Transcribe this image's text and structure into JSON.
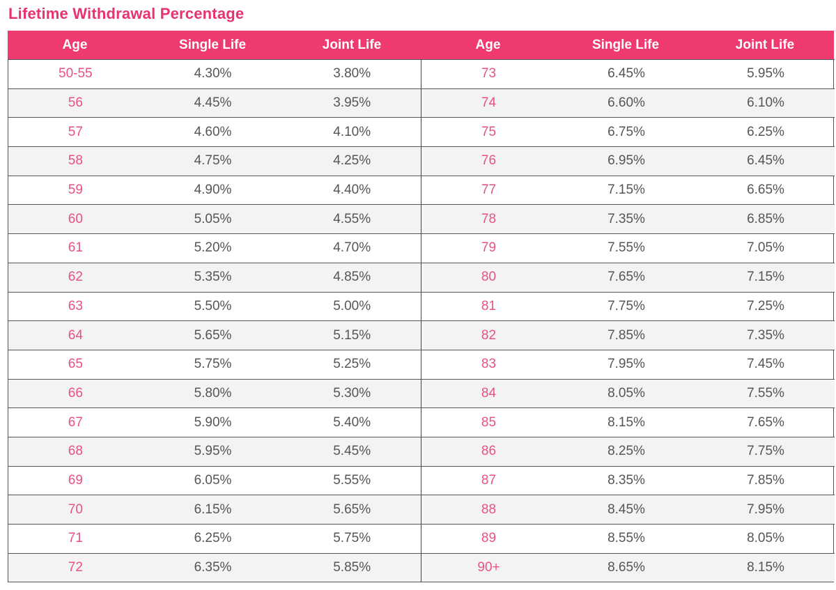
{
  "title": "Lifetime Withdrawal Percentage",
  "headers": [
    "Age",
    "Single Life",
    "Joint Life",
    "Age",
    "Single Life",
    "Joint Life"
  ],
  "colors": {
    "accent": "#ee3a6f",
    "title": "#e8336e",
    "age_text": "#e8527f",
    "stripe": "#f3f3f4"
  },
  "left_rows": [
    {
      "age": "50-55",
      "single": "4.30%",
      "joint": "3.80%"
    },
    {
      "age": "56",
      "single": "4.45%",
      "joint": "3.95%"
    },
    {
      "age": "57",
      "single": "4.60%",
      "joint": "4.10%"
    },
    {
      "age": "58",
      "single": "4.75%",
      "joint": "4.25%"
    },
    {
      "age": "59",
      "single": "4.90%",
      "joint": "4.40%"
    },
    {
      "age": "60",
      "single": "5.05%",
      "joint": "4.55%"
    },
    {
      "age": "61",
      "single": "5.20%",
      "joint": "4.70%"
    },
    {
      "age": "62",
      "single": "5.35%",
      "joint": "4.85%"
    },
    {
      "age": "63",
      "single": "5.50%",
      "joint": "5.00%"
    },
    {
      "age": "64",
      "single": "5.65%",
      "joint": "5.15%"
    },
    {
      "age": "65",
      "single": "5.75%",
      "joint": "5.25%"
    },
    {
      "age": "66",
      "single": "5.80%",
      "joint": "5.30%"
    },
    {
      "age": "67",
      "single": "5.90%",
      "joint": "5.40%"
    },
    {
      "age": "68",
      "single": "5.95%",
      "joint": "5.45%"
    },
    {
      "age": "69",
      "single": "6.05%",
      "joint": "5.55%"
    },
    {
      "age": "70",
      "single": "6.15%",
      "joint": "5.65%"
    },
    {
      "age": "71",
      "single": "6.25%",
      "joint": "5.75%"
    },
    {
      "age": "72",
      "single": "6.35%",
      "joint": "5.85%"
    }
  ],
  "right_rows": [
    {
      "age": "73",
      "single": "6.45%",
      "joint": "5.95%"
    },
    {
      "age": "74",
      "single": "6.60%",
      "joint": "6.10%"
    },
    {
      "age": "75",
      "single": "6.75%",
      "joint": "6.25%"
    },
    {
      "age": "76",
      "single": "6.95%",
      "joint": "6.45%"
    },
    {
      "age": "77",
      "single": "7.15%",
      "joint": "6.65%"
    },
    {
      "age": "78",
      "single": "7.35%",
      "joint": "6.85%"
    },
    {
      "age": "79",
      "single": "7.55%",
      "joint": "7.05%"
    },
    {
      "age": "80",
      "single": "7.65%",
      "joint": "7.15%"
    },
    {
      "age": "81",
      "single": "7.75%",
      "joint": "7.25%"
    },
    {
      "age": "82",
      "single": "7.85%",
      "joint": "7.35%"
    },
    {
      "age": "83",
      "single": "7.95%",
      "joint": "7.45%"
    },
    {
      "age": "84",
      "single": "8.05%",
      "joint": "7.55%"
    },
    {
      "age": "85",
      "single": "8.15%",
      "joint": "7.65%"
    },
    {
      "age": "86",
      "single": "8.25%",
      "joint": "7.75%"
    },
    {
      "age": "87",
      "single": "8.35%",
      "joint": "7.85%"
    },
    {
      "age": "88",
      "single": "8.45%",
      "joint": "7.95%"
    },
    {
      "age": "89",
      "single": "8.55%",
      "joint": "8.05%"
    },
    {
      "age": "90+",
      "single": "8.65%",
      "joint": "8.15%"
    }
  ]
}
